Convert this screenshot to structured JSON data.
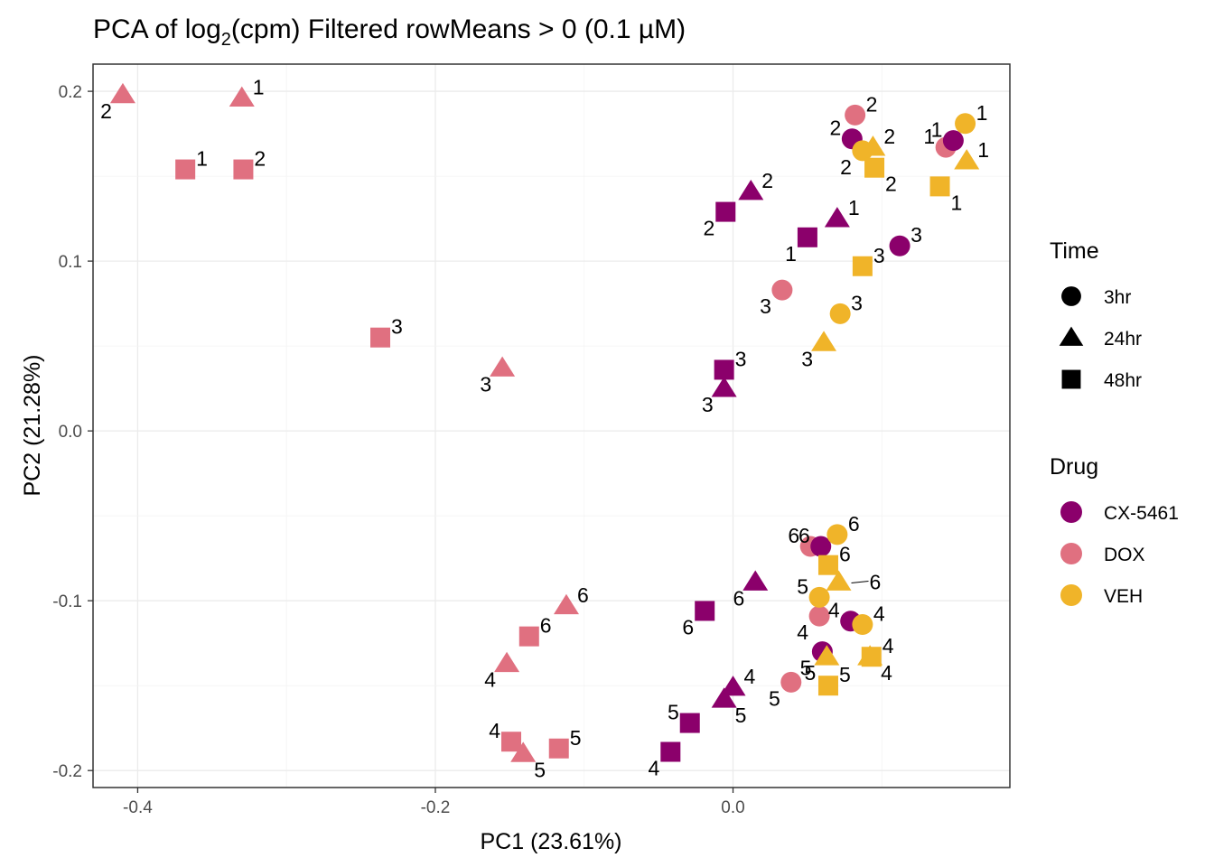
{
  "chart_data": {
    "type": "scatter",
    "title": "PCA of log",
    "title_subscript": "2",
    "title_suffix": "(cpm) Filtered rowMeans > 0 (0.1 µM)",
    "xlabel": "PC1 (23.61%)",
    "ylabel": "PC2 (21.28%)",
    "xlim": [
      -0.43,
      0.186
    ],
    "ylim": [
      -0.21,
      0.216
    ],
    "x_ticks": [
      -0.4,
      -0.2,
      0.0
    ],
    "x_tick_labels": [
      "-0.4",
      "-0.2",
      "0.0"
    ],
    "y_ticks": [
      -0.2,
      -0.1,
      0.0,
      0.1,
      0.2
    ],
    "y_tick_labels": [
      "-0.2",
      "-0.1",
      "0.0",
      "0.1",
      "0.2"
    ],
    "grid": true,
    "colors": {
      "CX-5461": "#8B006B",
      "DOX": "#E07080",
      "VEH": "#F0B429"
    },
    "legend": {
      "placement": "right",
      "time_title": "Time",
      "time_items": [
        {
          "label": "3hr",
          "shape": "circle"
        },
        {
          "label": "24hr",
          "shape": "triangle"
        },
        {
          "label": "48hr",
          "shape": "square"
        }
      ],
      "drug_title": "Drug",
      "drug_items": [
        {
          "label": "CX-5461",
          "color": "#8B006B"
        },
        {
          "label": "DOX",
          "color": "#E07080"
        },
        {
          "label": "VEH",
          "color": "#F0B429"
        }
      ]
    },
    "points": [
      {
        "x": -0.41,
        "y": 0.198,
        "drug": "DOX",
        "time": "24hr",
        "label": "2",
        "lp": "bl"
      },
      {
        "x": -0.33,
        "y": 0.196,
        "drug": "DOX",
        "time": "24hr",
        "label": "1",
        "lp": "tr"
      },
      {
        "x": -0.368,
        "y": 0.154,
        "drug": "DOX",
        "time": "48hr",
        "label": "1",
        "lp": "tr"
      },
      {
        "x": -0.329,
        "y": 0.154,
        "drug": "DOX",
        "time": "48hr",
        "label": "2",
        "lp": "tr"
      },
      {
        "x": -0.237,
        "y": 0.055,
        "drug": "DOX",
        "time": "48hr",
        "label": "3",
        "lp": "tr"
      },
      {
        "x": -0.155,
        "y": 0.037,
        "drug": "DOX",
        "time": "24hr",
        "label": "3",
        "lp": "bl"
      },
      {
        "x": 0.033,
        "y": 0.083,
        "drug": "DOX",
        "time": "3hr",
        "label": "3",
        "lp": "bl"
      },
      {
        "x": 0.082,
        "y": 0.186,
        "drug": "DOX",
        "time": "3hr",
        "label": "2",
        "lp": "tr"
      },
      {
        "x": 0.143,
        "y": 0.167,
        "drug": "DOX",
        "time": "3hr",
        "label": "1",
        "lp": "tl"
      },
      {
        "x": 0.052,
        "y": -0.068,
        "drug": "DOX",
        "time": "3hr",
        "label": "6",
        "lp": "tl"
      },
      {
        "x": 0.058,
        "y": -0.109,
        "drug": "DOX",
        "time": "3hr",
        "label": "4",
        "lp": "bl"
      },
      {
        "x": 0.039,
        "y": -0.148,
        "drug": "DOX",
        "time": "3hr",
        "label": "5",
        "lp": "bl"
      },
      {
        "x": -0.112,
        "y": -0.103,
        "drug": "DOX",
        "time": "24hr",
        "label": "6",
        "lp": "tr"
      },
      {
        "x": -0.137,
        "y": -0.121,
        "drug": "DOX",
        "time": "48hr",
        "label": "6",
        "lp": "tr"
      },
      {
        "x": -0.152,
        "y": -0.137,
        "drug": "DOX",
        "time": "24hr",
        "label": "4",
        "lp": "bl"
      },
      {
        "x": -0.149,
        "y": -0.183,
        "drug": "DOX",
        "time": "48hr",
        "label": "4",
        "lp": "tl"
      },
      {
        "x": -0.141,
        "y": -0.19,
        "drug": "DOX",
        "time": "24hr",
        "label": "5",
        "lp": "br"
      },
      {
        "x": -0.117,
        "y": -0.187,
        "drug": "DOX",
        "time": "48hr",
        "label": "5",
        "lp": "tr"
      },
      {
        "x": 0.08,
        "y": 0.172,
        "drug": "CX-5461",
        "time": "3hr",
        "label": "2",
        "lp": "tl"
      },
      {
        "x": 0.148,
        "y": 0.171,
        "drug": "CX-5461",
        "time": "3hr",
        "label": "1",
        "lp": "tl"
      },
      {
        "x": 0.112,
        "y": 0.109,
        "drug": "CX-5461",
        "time": "3hr",
        "label": "3",
        "lp": "tr"
      },
      {
        "x": 0.012,
        "y": 0.141,
        "drug": "CX-5461",
        "time": "24hr",
        "label": "2",
        "lp": "tr"
      },
      {
        "x": 0.07,
        "y": 0.125,
        "drug": "CX-5461",
        "time": "24hr",
        "label": "1",
        "lp": "tr"
      },
      {
        "x": -0.005,
        "y": 0.129,
        "drug": "CX-5461",
        "time": "48hr",
        "label": "2",
        "lp": "bl"
      },
      {
        "x": 0.05,
        "y": 0.114,
        "drug": "CX-5461",
        "time": "48hr",
        "label": "1",
        "lp": "bl"
      },
      {
        "x": -0.006,
        "y": 0.036,
        "drug": "CX-5461",
        "time": "48hr",
        "label": "3",
        "lp": "tr"
      },
      {
        "x": -0.006,
        "y": 0.025,
        "drug": "CX-5461",
        "time": "24hr",
        "label": "3",
        "lp": "bl"
      },
      {
        "x": 0.059,
        "y": -0.068,
        "drug": "CX-5461",
        "time": "3hr",
        "label": "6",
        "lp": "tl"
      },
      {
        "x": 0.079,
        "y": -0.112,
        "drug": "CX-5461",
        "time": "3hr",
        "label": "4",
        "lp": "tl"
      },
      {
        "x": 0.06,
        "y": -0.13,
        "drug": "CX-5461",
        "time": "3hr",
        "label": "5",
        "lp": "bl"
      },
      {
        "x": 0.015,
        "y": -0.089,
        "drug": "CX-5461",
        "time": "24hr",
        "label": "6",
        "lp": "bl"
      },
      {
        "x": -0.019,
        "y": -0.106,
        "drug": "CX-5461",
        "time": "48hr",
        "label": "6",
        "lp": "bl"
      },
      {
        "x": 0.0,
        "y": -0.151,
        "drug": "CX-5461",
        "time": "24hr",
        "label": "4",
        "lp": "tr"
      },
      {
        "x": -0.006,
        "y": -0.158,
        "drug": "CX-5461",
        "time": "24hr",
        "label": "5",
        "lp": "br"
      },
      {
        "x": -0.029,
        "y": -0.172,
        "drug": "CX-5461",
        "time": "48hr",
        "label": "5",
        "lp": "tl"
      },
      {
        "x": -0.042,
        "y": -0.189,
        "drug": "CX-5461",
        "time": "48hr",
        "label": "4",
        "lp": "bl"
      },
      {
        "x": 0.156,
        "y": 0.181,
        "drug": "VEH",
        "time": "3hr",
        "label": "1",
        "lp": "tr"
      },
      {
        "x": 0.087,
        "y": 0.165,
        "drug": "VEH",
        "time": "3hr",
        "label": "2",
        "lp": "bl"
      },
      {
        "x": 0.072,
        "y": 0.069,
        "drug": "VEH",
        "time": "3hr",
        "label": "3",
        "lp": "tr"
      },
      {
        "x": 0.07,
        "y": -0.061,
        "drug": "VEH",
        "time": "3hr",
        "label": "6",
        "lp": "tr"
      },
      {
        "x": 0.058,
        "y": -0.098,
        "drug": "VEH",
        "time": "3hr",
        "label": "5",
        "lp": "tl"
      },
      {
        "x": 0.087,
        "y": -0.114,
        "drug": "VEH",
        "time": "3hr",
        "label": "4",
        "lp": "tr"
      },
      {
        "x": 0.094,
        "y": 0.167,
        "drug": "VEH",
        "time": "24hr",
        "label": "2",
        "lp": "tr"
      },
      {
        "x": 0.157,
        "y": 0.159,
        "drug": "VEH",
        "time": "24hr",
        "label": "1",
        "lp": "tr"
      },
      {
        "x": 0.061,
        "y": 0.052,
        "drug": "VEH",
        "time": "24hr",
        "label": "3",
        "lp": "bl"
      },
      {
        "x": 0.071,
        "y": -0.089,
        "drug": "VEH",
        "time": "24hr",
        "label": "6",
        "lp": "far-r"
      },
      {
        "x": 0.063,
        "y": -0.133,
        "drug": "VEH",
        "time": "24hr",
        "label": "5",
        "lp": "bl"
      },
      {
        "x": 0.092,
        "y": -0.133,
        "drug": "VEH",
        "time": "24hr",
        "label": "4",
        "lp": "br"
      },
      {
        "x": 0.095,
        "y": 0.155,
        "drug": "VEH",
        "time": "48hr",
        "label": "2",
        "lp": "br"
      },
      {
        "x": 0.139,
        "y": 0.144,
        "drug": "VEH",
        "time": "48hr",
        "label": "1",
        "lp": "br"
      },
      {
        "x": 0.087,
        "y": 0.097,
        "drug": "VEH",
        "time": "48hr",
        "label": "3",
        "lp": "tr"
      },
      {
        "x": 0.064,
        "y": -0.079,
        "drug": "VEH",
        "time": "48hr",
        "label": "6",
        "lp": "tr"
      },
      {
        "x": 0.064,
        "y": -0.15,
        "drug": "VEH",
        "time": "48hr",
        "label": "5",
        "lp": "tr"
      },
      {
        "x": 0.093,
        "y": -0.133,
        "drug": "VEH",
        "time": "48hr",
        "label": "4",
        "lp": "tr"
      }
    ]
  }
}
